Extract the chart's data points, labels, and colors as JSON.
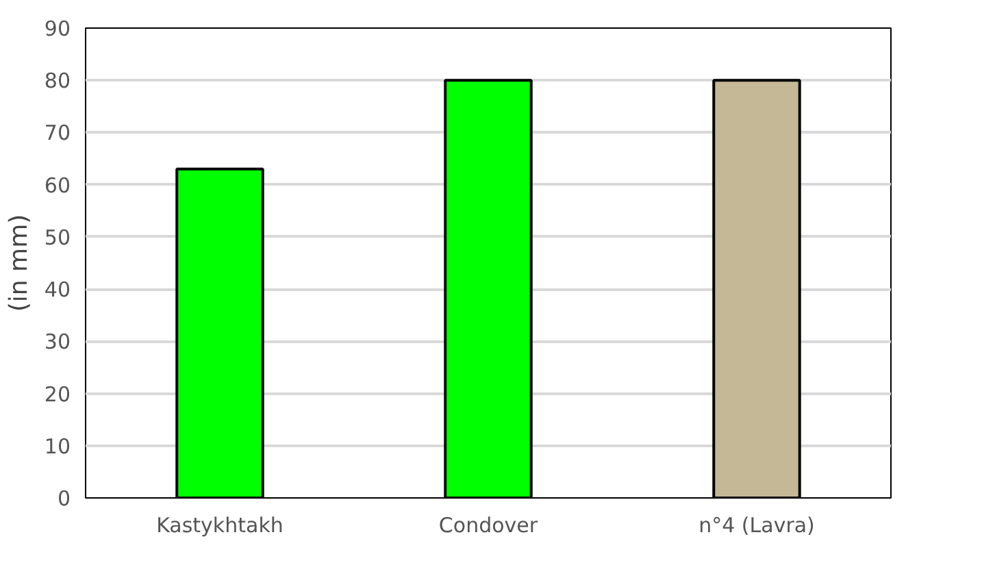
{
  "chart_data": {
    "type": "bar",
    "ylabel": "(in mm)",
    "categories": [
      "Kastykhtakh",
      "Condover",
      "n°4 (Lavra)"
    ],
    "values": [
      63,
      80,
      80
    ],
    "colors": [
      "#00ff00",
      "#00ff00",
      "#c4b896"
    ],
    "ylim": [
      0,
      90
    ],
    "yticks": [
      0,
      10,
      20,
      30,
      40,
      50,
      60,
      70,
      80,
      90
    ],
    "grid": "y"
  }
}
